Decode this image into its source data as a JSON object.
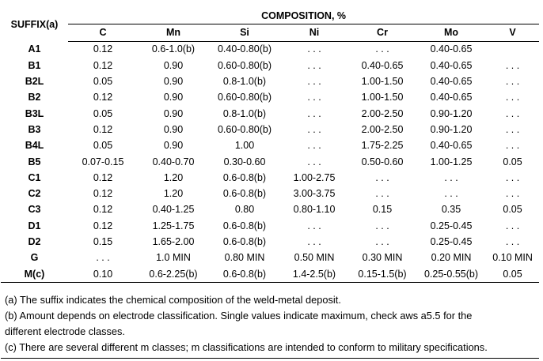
{
  "table": {
    "suffix_header": "SUFFIX(a)",
    "composition_header": "COMPOSITION, %",
    "columns": [
      "C",
      "Mn",
      "Si",
      "Ni",
      "Cr",
      "Mo",
      "V"
    ],
    "rows": [
      {
        "suffix": "A1",
        "cells": [
          "0.12",
          "0.6-1.0(b)",
          "0.40-0.80(b)",
          ". . .",
          ". . .",
          "0.40-0.65",
          ""
        ]
      },
      {
        "suffix": "B1",
        "cells": [
          "0.12",
          "0.90",
          "0.60-0.80(b)",
          ". . .",
          "0.40-0.65",
          "0.40-0.65",
          ". . ."
        ]
      },
      {
        "suffix": "B2L",
        "cells": [
          "0.05",
          "0.90",
          "0.8-1.0(b)",
          ". . .",
          "1.00-1.50",
          "0.40-0.65",
          ". . ."
        ]
      },
      {
        "suffix": "B2",
        "cells": [
          "0.12",
          "0.90",
          "0.60-0.80(b)",
          ". . .",
          "1.00-1.50",
          "0.40-0.65",
          ". . ."
        ]
      },
      {
        "suffix": "B3L",
        "cells": [
          "0.05",
          "0.90",
          "0.8-1.0(b)",
          ". . .",
          "2.00-2.50",
          "0.90-1.20",
          ". . ."
        ]
      },
      {
        "suffix": "B3",
        "cells": [
          "0.12",
          "0.90",
          "0.60-0.80(b)",
          ". . .",
          "2.00-2.50",
          "0.90-1.20",
          ". . ."
        ]
      },
      {
        "suffix": "B4L",
        "cells": [
          "0.05",
          "0.90",
          "1.00",
          ". . .",
          "1.75-2.25",
          "0.40-0.65",
          ". . ."
        ]
      },
      {
        "suffix": "B5",
        "cells": [
          "0.07-0.15",
          "0.40-0.70",
          "0.30-0.60",
          ". . .",
          "0.50-0.60",
          "1.00-1.25",
          "0.05"
        ]
      },
      {
        "suffix": "C1",
        "cells": [
          "0.12",
          "1.20",
          "0.6-0.8(b)",
          "1.00-2.75",
          ". . .",
          ". . .",
          ". . ."
        ]
      },
      {
        "suffix": "C2",
        "cells": [
          "0.12",
          "1.20",
          "0.6-0.8(b)",
          "3.00-3.75",
          ". . .",
          ". . .",
          ". . ."
        ]
      },
      {
        "suffix": "C3",
        "cells": [
          "0.12",
          "0.40-1.25",
          "0.80",
          "0.80-1.10",
          "0.15",
          "0.35",
          "0.05"
        ]
      },
      {
        "suffix": "D1",
        "cells": [
          "0.12",
          "1.25-1.75",
          "0.6-0.8(b)",
          ". . .",
          ". . .",
          "0.25-0.45",
          ". . ."
        ]
      },
      {
        "suffix": "D2",
        "cells": [
          "0.15",
          "1.65-2.00",
          "0.6-0.8(b)",
          ". . .",
          ". . .",
          "0.25-0.45",
          ". . ."
        ]
      },
      {
        "suffix": "G",
        "cells": [
          ". . .",
          "1.0 MIN",
          "0.80 MIN",
          "0.50 MIN",
          "0.30 MIN",
          "0.20 MIN",
          "0.10 MIN"
        ]
      },
      {
        "suffix": "M(c)",
        "cells": [
          "0.10",
          "0.6-2.25(b)",
          "0.6-0.8(b)",
          "1.4-2.5(b)",
          "0.15-1.5(b)",
          "0.25-0.55(b)",
          "0.05"
        ]
      }
    ]
  },
  "notes": [
    "(a) The suffix indicates the chemical composition of the weld-metal deposit.",
    "(b) Amount depends on electrode classification. Single values indicate maximum, check aws a5.5 for the",
    "different electrode classes.",
    "(c) There are several different m classes; m classifications are intended to conform to military specifications."
  ]
}
